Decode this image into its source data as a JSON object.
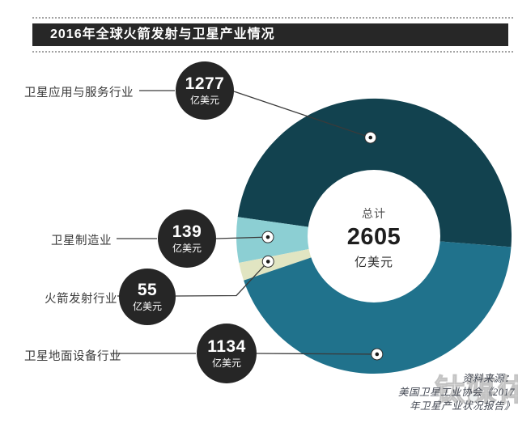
{
  "header": {
    "title": "2016年全球火箭发射与卫星产业情况",
    "bar_color": "#272727",
    "text_color": "#ffffff"
  },
  "chart_data": {
    "type": "pie",
    "subtype": "donut",
    "title": "2016年全球火箭发射与卫星产业情况",
    "categories": [
      "卫星应用与服务行业",
      "卫星制造业",
      "火箭发射行业",
      "卫星地面设备行业"
    ],
    "values": [
      1277,
      139,
      55,
      1134
    ],
    "unit": "亿美元",
    "total": 2605,
    "center_label": "总计",
    "colors": [
      "#12424F",
      "#8CCFD3",
      "#E1E5C2",
      "#20728C"
    ],
    "start_angle_deg": -4.5,
    "direction": "counterclockwise",
    "legend_position": "left-callouts",
    "grid": false
  },
  "callouts": [
    {
      "label": "卫星应用与服务行业",
      "value": "1277",
      "unit": "亿美元"
    },
    {
      "label": "卫星制造业",
      "value": "139",
      "unit": "亿美元"
    },
    {
      "label": "火箭发射行业",
      "value": "55",
      "unit": "亿美元"
    },
    {
      "label": "卫星地面设备行业",
      "value": "1134",
      "unit": "亿美元"
    }
  ],
  "center": {
    "label": "总计",
    "value": "2605",
    "unit": "亿美元"
  },
  "source": {
    "line1": "资料来源：",
    "line2": "美国卫星工业协会《2017",
    "line3": "年卫星产业状况报告》"
  },
  "watermark": {
    "text": "钛媒体"
  },
  "colors": {
    "bubble": "#262626",
    "leader_line": "#3a3a3a",
    "marker_fill": "#ffffff",
    "marker_dot": "#1c1c1c"
  }
}
